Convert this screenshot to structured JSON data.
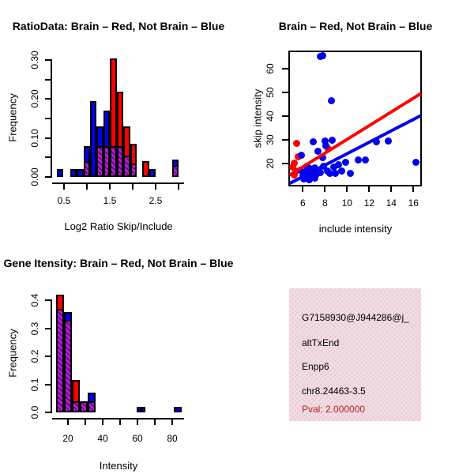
{
  "figure": {
    "background": "#ffffff",
    "layout": "2x2 R graphics panels"
  },
  "colors": {
    "blue": "#0000ee",
    "red": "#ff0000",
    "overlap_purple_light": "#c41ce0",
    "overlap_purple_dark": "#5c1080",
    "info_pink": "#f9d9ec",
    "info_pink_check": "#e3d6d2",
    "pval_red": "#b22222",
    "axis_black": "#000000"
  },
  "chart_data": [
    {
      "id": "ratio_histogram",
      "type": "bar",
      "title": "RatioData: Brain – Red, Not Brain – Blue",
      "xlabel": "Log2 Ratio Skip/Include",
      "ylabel": "Frequency",
      "xlim": [
        0.3,
        3.05
      ],
      "ylim": [
        0,
        0.315
      ],
      "x_ticks": [
        0.5,
        1.0,
        1.5,
        2.0,
        2.5,
        3.0
      ],
      "x_tick_labels": [
        "0.5",
        "1.5",
        "2.5"
      ],
      "x_tick_label_values": [
        0.5,
        1.5,
        2.5
      ],
      "y_ticks": [
        0,
        0.05,
        0.1,
        0.15,
        0.2,
        0.25,
        0.3
      ],
      "y_tick_labels": [
        "0.00",
        "0.10",
        "0.20",
        "0.30"
      ],
      "y_tick_label_values": [
        0,
        0.1,
        0.2,
        0.3
      ],
      "bin_width": 0.145,
      "legend_note": "blue = Not Brain, red = Brain, purple hatch = overlap",
      "bars": [
        {
          "left": 0.345,
          "blue": 0.02,
          "red": 0
        },
        {
          "left": 0.635,
          "blue": 0.02,
          "red": 0
        },
        {
          "left": 0.78,
          "blue": 0.02,
          "red": 0
        },
        {
          "left": 0.925,
          "blue": 0.08,
          "red": 0.04
        },
        {
          "left": 1.07,
          "blue": 0.195,
          "red": 0
        },
        {
          "left": 1.215,
          "blue": 0.13,
          "red": 0.08
        },
        {
          "left": 1.36,
          "blue": 0.17,
          "red": 0.08
        },
        {
          "left": 1.505,
          "blue": 0.08,
          "red": 0.305
        },
        {
          "left": 1.65,
          "blue": 0.08,
          "red": 0.22
        },
        {
          "left": 1.795,
          "blue": 0.055,
          "red": 0.13
        },
        {
          "left": 1.94,
          "blue": 0.035,
          "red": 0.085
        },
        {
          "left": 2.21,
          "blue": 0,
          "red": 0.04
        },
        {
          "left": 2.355,
          "blue": 0.02,
          "red": 0
        },
        {
          "left": 2.86,
          "blue": 0.045,
          "red": 0.03
        }
      ]
    },
    {
      "id": "intensity_scatter",
      "type": "scatter",
      "title": "Brain – Red, Not Brain – Blue",
      "xlabel": "include intensity",
      "ylabel": "skip intensity",
      "xlim": [
        4.75,
        16.75
      ],
      "ylim": [
        10.5,
        67
      ],
      "x_ticks": [
        6,
        8,
        10,
        12,
        14,
        16
      ],
      "x_tick_labels": [
        "6",
        "8",
        "10",
        "12",
        "14",
        "16"
      ],
      "y_ticks": [
        20,
        30,
        40,
        50,
        60
      ],
      "y_tick_labels": [
        "20",
        "30",
        "40",
        "50",
        "60"
      ],
      "series": [
        {
          "name": "brain_red",
          "color": "red",
          "points": [
            [
              5.45,
              28.3
            ],
            [
              5.2,
              20.0
            ],
            [
              5.1,
              18.4
            ],
            [
              5.35,
              16.6
            ],
            [
              5.2,
              15.0
            ],
            [
              5.6,
              22.6
            ],
            [
              6.6,
              13.2
            ],
            [
              8.3,
              26.2
            ]
          ]
        },
        {
          "name": "not_brain_blue",
          "color": "blue",
          "points": [
            [
              7.55,
              65.0
            ],
            [
              7.8,
              65.3
            ],
            [
              8.55,
              46.5
            ],
            [
              6.95,
              29.0
            ],
            [
              8.0,
              29.5
            ],
            [
              8.65,
              29.8
            ],
            [
              8.1,
              27.3
            ],
            [
              7.4,
              25.2
            ],
            [
              5.85,
              23.5
            ],
            [
              7.8,
              22.4
            ],
            [
              12.65,
              29.0
            ],
            [
              13.7,
              29.5
            ],
            [
              11.0,
              21.3
            ],
            [
              11.65,
              21.3
            ],
            [
              16.2,
              20.5
            ],
            [
              9.85,
              20.5
            ],
            [
              10.3,
              15.7
            ],
            [
              6.35,
              18.8
            ],
            [
              5.8,
              17.2
            ],
            [
              6.0,
              14.8
            ],
            [
              6.1,
              13.4
            ],
            [
              6.3,
              16.3
            ],
            [
              6.5,
              15.4
            ],
            [
              6.65,
              17.6
            ],
            [
              6.75,
              14.1
            ],
            [
              6.9,
              16.2
            ],
            [
              7.05,
              18.2
            ],
            [
              7.2,
              15.5
            ],
            [
              7.35,
              17.2
            ],
            [
              7.55,
              16.1
            ],
            [
              7.9,
              18.6
            ],
            [
              8.2,
              16.6
            ],
            [
              8.45,
              15.9
            ],
            [
              8.8,
              18.4
            ],
            [
              9.2,
              19.4
            ],
            [
              9.5,
              16.8
            ],
            [
              8.95,
              15.8
            ],
            [
              7.1,
              13.6
            ],
            [
              6.55,
              13.0
            ]
          ]
        }
      ],
      "fit_lines": [
        {
          "color": "blue",
          "from": [
            4.8,
            11.5
          ],
          "to": [
            16.7,
            40.2
          ]
        },
        {
          "color": "red",
          "from": [
            4.8,
            15.0
          ],
          "to": [
            16.7,
            49.5
          ]
        }
      ]
    },
    {
      "id": "gene_intensity_histogram",
      "type": "bar",
      "title": "Gene Itensity: Brain – Red, Not Brain – Blue",
      "xlabel": "Intensity",
      "ylabel": "Frequency",
      "xlim": [
        11,
        87
      ],
      "ylim": [
        0,
        0.44
      ],
      "x_ticks": [
        20,
        30,
        40,
        50,
        60,
        70,
        80
      ],
      "x_tick_labels": [
        "20",
        "40",
        "60",
        "80"
      ],
      "x_tick_label_values": [
        20,
        40,
        60,
        80
      ],
      "y_ticks": [
        0,
        0.1,
        0.2,
        0.3,
        0.4
      ],
      "y_tick_labels": [
        "0.0",
        "0.1",
        "0.2",
        "0.3",
        "0.4"
      ],
      "y_tick_label_values": [
        0,
        0.1,
        0.2,
        0.3,
        0.4
      ],
      "bin_width": 4.55,
      "legend_note": "blue = Not Brain, red = Brain, purple hatch = overlap",
      "bars": [
        {
          "left": 13.2,
          "blue": 0.37,
          "red": 0.42
        },
        {
          "left": 17.75,
          "blue": 0.36,
          "red": 0.33
        },
        {
          "left": 22.3,
          "blue": 0.04,
          "red": 0.115
        },
        {
          "left": 26.85,
          "blue": 0.04,
          "red": 0.04
        },
        {
          "left": 31.4,
          "blue": 0.07,
          "red": 0.04
        },
        {
          "left": 59.7,
          "width": 2.4,
          "blue": 0.02,
          "red": 0
        },
        {
          "left": 62.1,
          "width": 2.4,
          "blue": 0.02,
          "red": 0
        },
        {
          "left": 81.0,
          "width": 4.4,
          "blue": 0.02,
          "red": 0
        }
      ]
    },
    {
      "id": "info_panel",
      "type": "text_panel",
      "lines": [
        {
          "text": "G7158930@J944286@j_",
          "color": "black"
        },
        {
          "text": "altTxEnd",
          "color": "black"
        },
        {
          "text": "Enpp6",
          "color": "black"
        },
        {
          "text": "chr8.24463-3.5",
          "color": "black"
        },
        {
          "text": "Pval: 2.000000",
          "color": "pval_red"
        }
      ]
    }
  ]
}
